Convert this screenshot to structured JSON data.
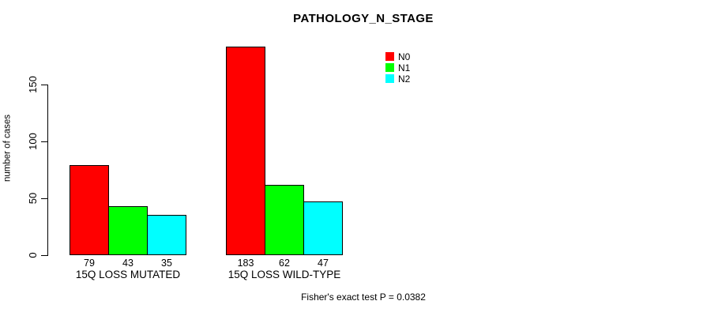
{
  "chart_data": {
    "type": "bar",
    "title": "PATHOLOGY_N_STAGE",
    "categories": [
      "15Q LOSS MUTATED",
      "15Q LOSS WILD-TYPE"
    ],
    "series": [
      {
        "name": "N0",
        "color": "#FF0000",
        "values": [
          79,
          183
        ]
      },
      {
        "name": "N1",
        "color": "#00FF00",
        "values": [
          43,
          62
        ]
      },
      {
        "name": "N2",
        "color": "#00FFFF",
        "values": [
          35,
          47
        ]
      }
    ],
    "xlabel": "",
    "ylabel": "number of cases",
    "yticks": [
      0,
      50,
      100,
      150
    ],
    "ylim": [
      0,
      190
    ],
    "grid": false,
    "bar_value_labels_shown": true,
    "legend_position": "top-right-inside",
    "annotation": "Fisher's exact test P = 0.0382",
    "axis_color": "#000000",
    "background_color": "#FFFFFF"
  }
}
